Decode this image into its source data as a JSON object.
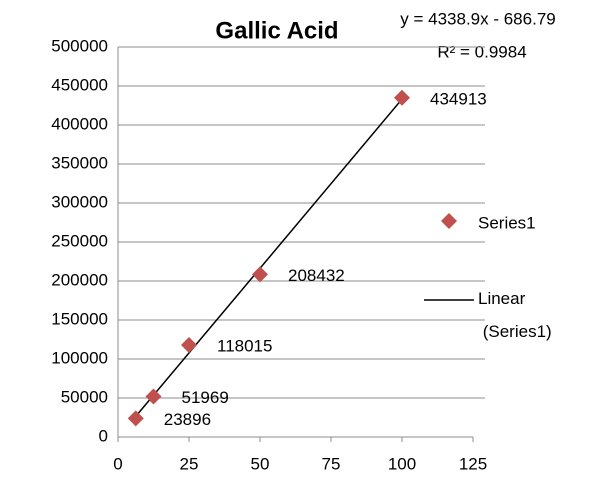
{
  "chart_data": {
    "type": "scatter",
    "title": "Gallic Acid",
    "x": [
      6.25,
      12.5,
      25,
      50,
      100
    ],
    "series": [
      {
        "name": "Series1",
        "color": "#c0504d",
        "values": [
          23896,
          51969,
          118015,
          208432,
          434913
        ]
      }
    ],
    "trendline": {
      "name": "Linear (Series1)",
      "equation": "y = 4338.9x - 686.79",
      "r_squared": "R² = 0.9984",
      "slope": 4338.9,
      "intercept": -686.79,
      "color": "#000000"
    },
    "xlim": [
      0,
      125
    ],
    "xticks": [
      0,
      25,
      50,
      75,
      100,
      125
    ],
    "ylim": [
      0,
      500000
    ],
    "yticks": [
      0,
      50000,
      100000,
      150000,
      200000,
      250000,
      300000,
      350000,
      400000,
      450000,
      500000
    ],
    "grid": true,
    "legend": "right"
  }
}
